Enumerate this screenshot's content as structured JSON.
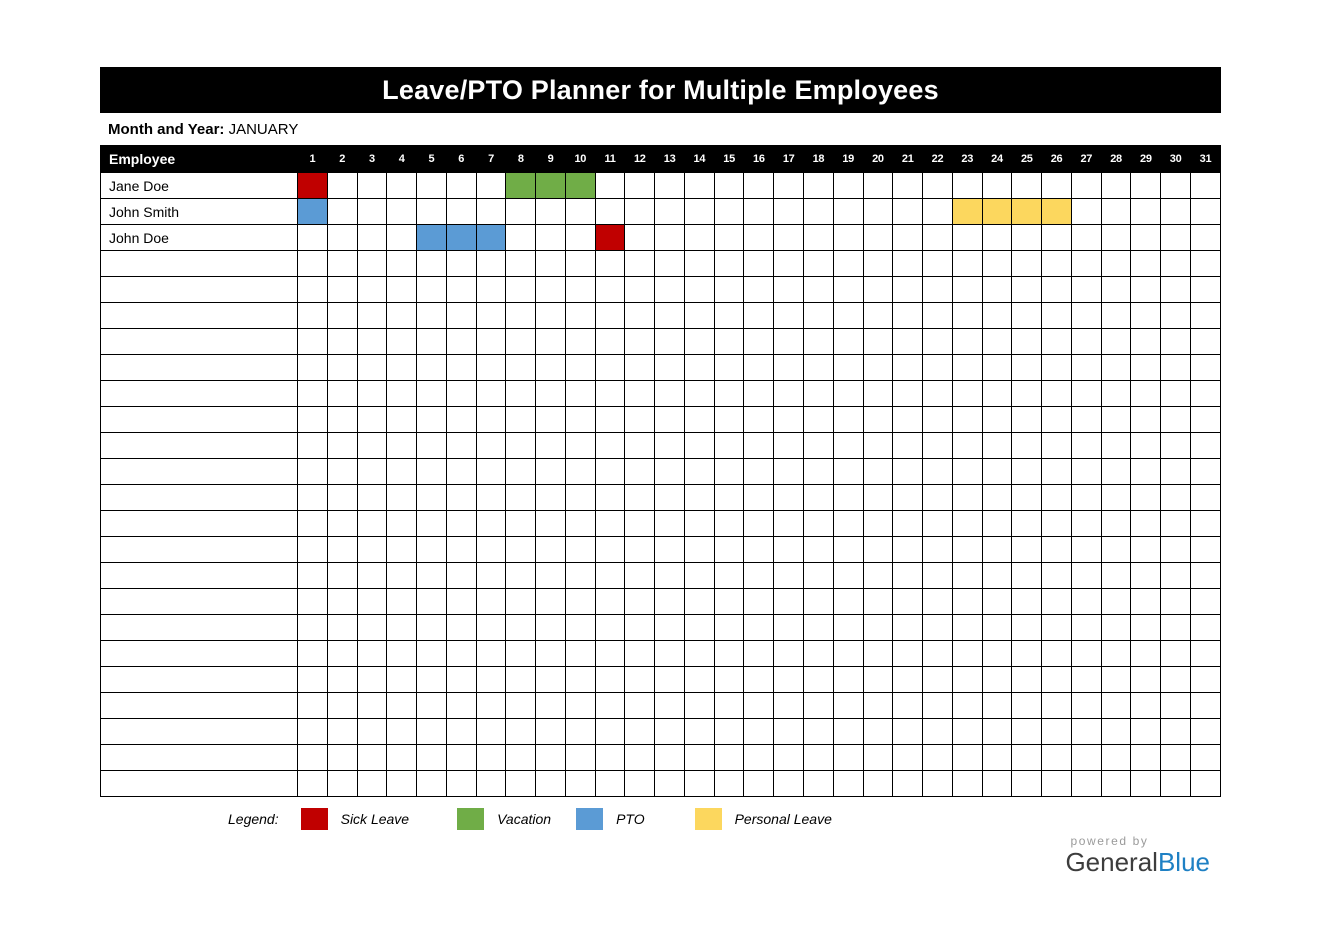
{
  "title": "Leave/PTO Planner for Multiple Employees",
  "month": {
    "label": "Month and Year:",
    "value": "JANUARY"
  },
  "table": {
    "employee_header": "Employee",
    "days": 31,
    "total_rows": 24,
    "employees": [
      {
        "name": "Jane Doe",
        "leaves": [
          {
            "day": 1,
            "type": "sick"
          },
          {
            "day": 8,
            "type": "vacation"
          },
          {
            "day": 9,
            "type": "vacation"
          },
          {
            "day": 10,
            "type": "vacation"
          }
        ]
      },
      {
        "name": "John Smith",
        "leaves": [
          {
            "day": 1,
            "type": "pto"
          },
          {
            "day": 23,
            "type": "personal"
          },
          {
            "day": 24,
            "type": "personal"
          },
          {
            "day": 25,
            "type": "personal"
          },
          {
            "day": 26,
            "type": "personal"
          }
        ]
      },
      {
        "name": "John Doe",
        "leaves": [
          {
            "day": 5,
            "type": "pto"
          },
          {
            "day": 6,
            "type": "pto"
          },
          {
            "day": 7,
            "type": "pto"
          },
          {
            "day": 11,
            "type": "sick"
          }
        ]
      }
    ]
  },
  "legend": {
    "caption": "Legend:",
    "items": [
      {
        "type": "sick",
        "label": "Sick Leave",
        "color": "#C00000"
      },
      {
        "type": "vacation",
        "label": "Vacation",
        "color": "#70AD47"
      },
      {
        "type": "pto",
        "label": "PTO",
        "color": "#5B9BD5"
      },
      {
        "type": "personal",
        "label": "Personal Leave",
        "color": "#FCD75E"
      }
    ]
  },
  "branding": {
    "powered_by": "powered by",
    "name_dark": "General",
    "name_accent": "Blue",
    "accent_color": "#1E80C4"
  }
}
